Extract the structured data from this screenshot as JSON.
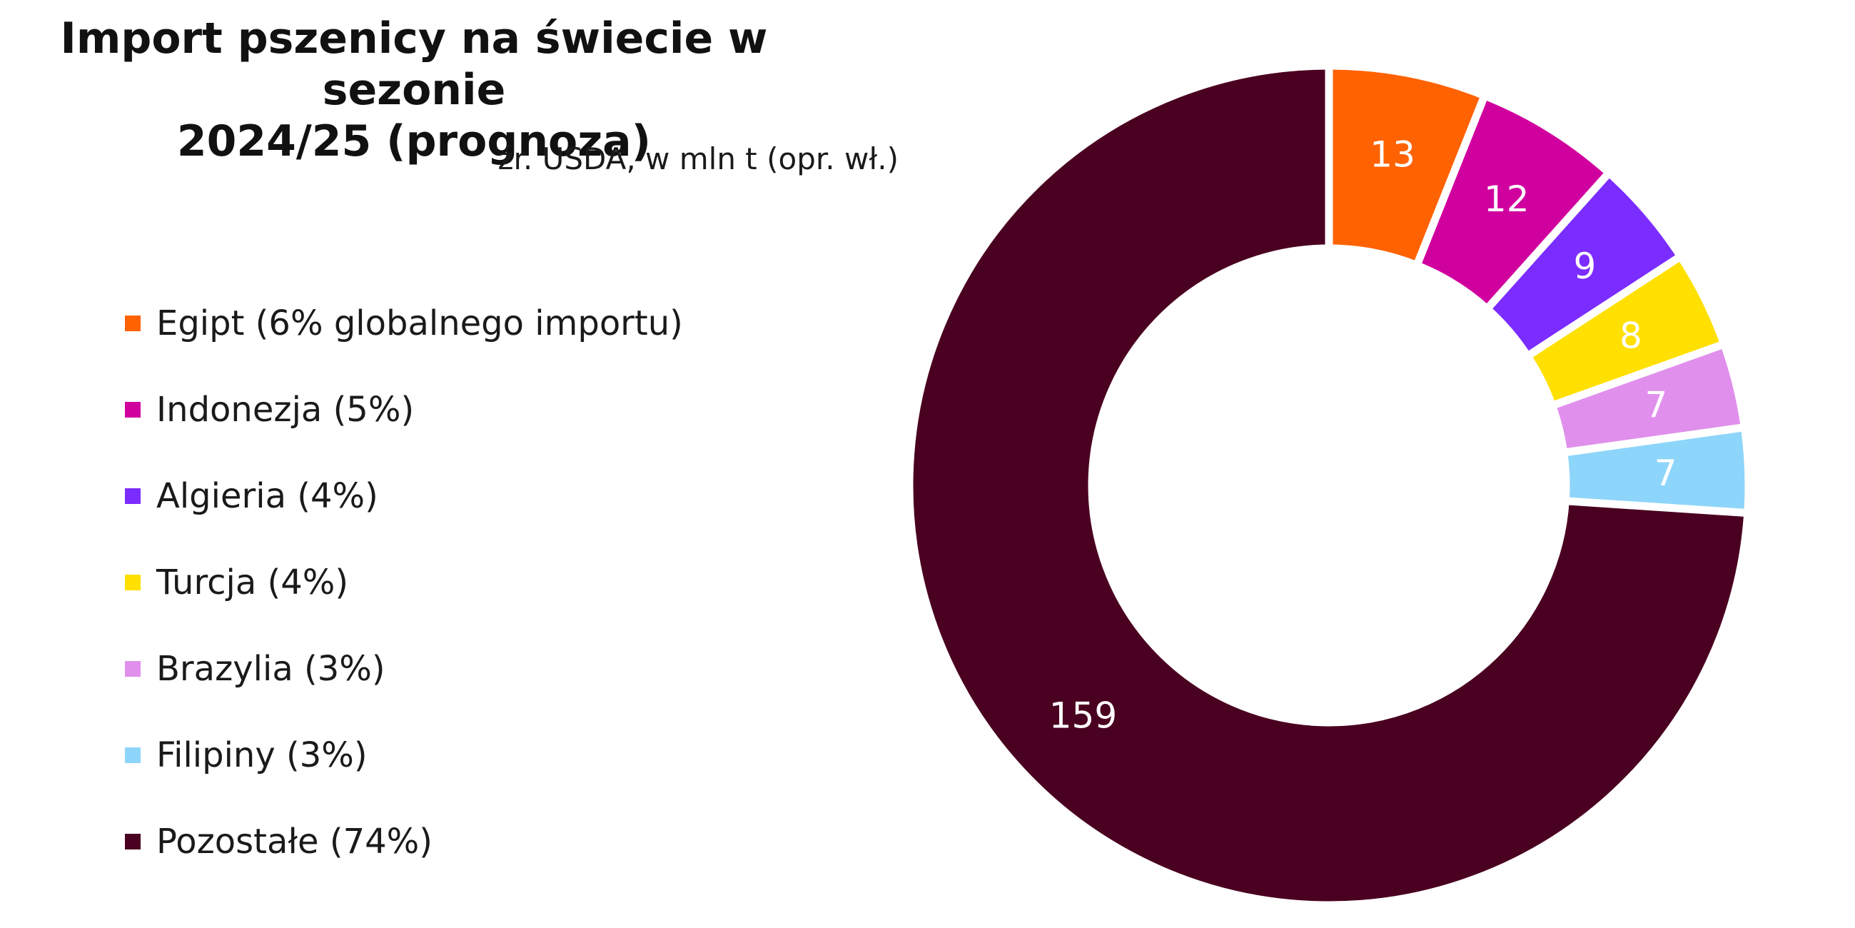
{
  "chart_data": {
    "type": "pie",
    "variant": "donut",
    "title_line1": "Import pszenicy na świecie w sezonie",
    "title_line2": "2024/25 (prognoza)",
    "subtitle": "źr. USDA, w mln t (opr. wł.)",
    "legend_placement": "left",
    "slices": [
      {
        "name": "Egipt (6% globalnego importu)",
        "value": 13,
        "label": "13",
        "color": "#ff6200"
      },
      {
        "name": "Indonezja (5%)",
        "value": 12,
        "label": "12",
        "color": "#d0009f"
      },
      {
        "name": "Algieria (4%)",
        "value": 9,
        "label": "9",
        "color": "#7b2cff"
      },
      {
        "name": "Turcja (4%)",
        "value": 8,
        "label": "8",
        "color": "#ffe000"
      },
      {
        "name": "Brazylia (3%)",
        "value": 7,
        "label": "7",
        "color": "#e090ec"
      },
      {
        "name": "Filipiny (3%)",
        "value": 7,
        "label": "7",
        "color": "#8dd5fa"
      },
      {
        "name": "Pozostałe (74%)",
        "value": 159,
        "label": "159",
        "color": "#4a0020"
      }
    ]
  }
}
